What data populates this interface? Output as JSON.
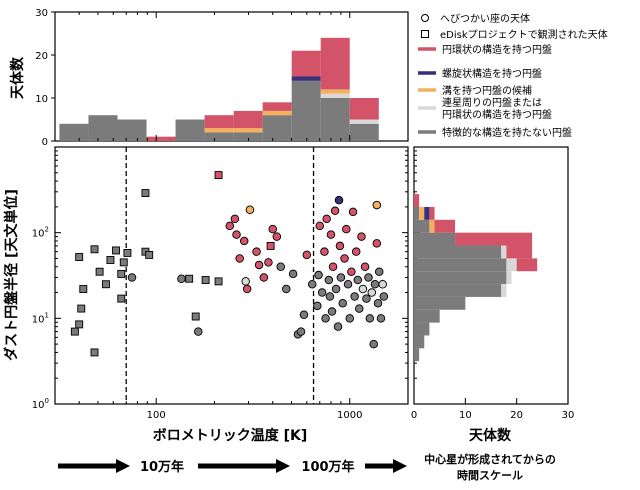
{
  "chart_data": {
    "type": "scatter",
    "title": "",
    "legend": {
      "markers": [
        {
          "marker": "circle",
          "label": "へびつかい座の天体"
        },
        {
          "marker": "square",
          "label": "eDiskプロジェクトで観測された天体"
        }
      ],
      "categories": [
        {
          "key": "ring",
          "label": "円環状の構造を持つ円盤",
          "color": "#d35368"
        },
        {
          "key": "spiral",
          "label": "螺旋状構造を持つ円盤",
          "color": "#35317d"
        },
        {
          "key": "gap",
          "label": "溝を持つ円盤の候補",
          "color": "#f4b05c"
        },
        {
          "key": "binary",
          "label": "連星周りの円盤または\n円環状の構造を持つ円盤",
          "color": "#d8d8d8"
        },
        {
          "key": "none",
          "label": "特徴的な構造を持たない円盤",
          "color": "#7b7b7b"
        }
      ]
    },
    "top_histogram": {
      "ylabel": "天体数",
      "ylim": [
        0,
        30
      ],
      "yticks": [
        "0",
        "10",
        "20",
        "30"
      ],
      "bins_log10_K": [
        1.5,
        1.65,
        1.8,
        1.95,
        2.1,
        2.25,
        2.4,
        2.55,
        2.7,
        2.85,
        3.0,
        3.15
      ],
      "counts": {
        "none": [
          4,
          6,
          5,
          0,
          5,
          2,
          2,
          6,
          14,
          10,
          4
        ],
        "binary": [
          0,
          0,
          0,
          0,
          0,
          0,
          0,
          0,
          0,
          1,
          1
        ],
        "gap": [
          0,
          0,
          0,
          0,
          0,
          1,
          1,
          1,
          0,
          1,
          0
        ],
        "spiral": [
          0,
          0,
          0,
          0,
          0,
          0,
          0,
          0,
          1,
          0,
          0
        ],
        "ring": [
          0,
          0,
          0,
          1,
          0,
          3,
          4,
          2,
          6,
          12,
          5
        ]
      }
    },
    "scatter": {
      "xlabel": "ボロメトリック温度 [K]",
      "ylabel": "ダスト円盤半径 [天文単位]",
      "xscale": "log",
      "yscale": "log",
      "xlim": [
        30,
        2000
      ],
      "ylim": [
        1,
        1000
      ],
      "xticks": [
        "100",
        "1000"
      ],
      "yticks": [
        "10^0",
        "10^1",
        "10^2"
      ],
      "vlines_K": [
        70,
        650
      ],
      "points": [
        {
          "x": 38,
          "y": 7,
          "m": "square",
          "c": "none"
        },
        {
          "x": 40,
          "y": 8.5,
          "m": "square",
          "c": "none"
        },
        {
          "x": 41,
          "y": 13,
          "m": "square",
          "c": "none"
        },
        {
          "x": 42,
          "y": 22,
          "m": "square",
          "c": "none"
        },
        {
          "x": 40,
          "y": 52,
          "m": "square",
          "c": "none"
        },
        {
          "x": 48,
          "y": 64,
          "m": "square",
          "c": "none"
        },
        {
          "x": 51,
          "y": 35,
          "m": "square",
          "c": "none"
        },
        {
          "x": 48,
          "y": 4,
          "m": "square",
          "c": "none"
        },
        {
          "x": 55,
          "y": 25,
          "m": "square",
          "c": "none"
        },
        {
          "x": 58,
          "y": 48,
          "m": "square",
          "c": "none"
        },
        {
          "x": 62,
          "y": 62,
          "m": "square",
          "c": "none"
        },
        {
          "x": 66,
          "y": 17,
          "m": "square",
          "c": "none"
        },
        {
          "x": 66,
          "y": 33,
          "m": "square",
          "c": "none"
        },
        {
          "x": 68,
          "y": 45,
          "m": "square",
          "c": "none"
        },
        {
          "x": 71,
          "y": 58,
          "m": "square",
          "c": "none"
        },
        {
          "x": 88,
          "y": 290,
          "m": "square",
          "c": "none"
        },
        {
          "x": 88,
          "y": 60,
          "m": "square",
          "c": "none"
        },
        {
          "x": 92,
          "y": 55,
          "m": "square",
          "c": "none"
        },
        {
          "x": 148,
          "y": 29,
          "m": "square",
          "c": "none"
        },
        {
          "x": 160,
          "y": 10.5,
          "m": "square",
          "c": "none"
        },
        {
          "x": 180,
          "y": 28,
          "m": "square",
          "c": "none"
        },
        {
          "x": 210,
          "y": 470,
          "m": "square",
          "c": "ring"
        },
        {
          "x": 210,
          "y": 27,
          "m": "square",
          "c": "none"
        },
        {
          "x": 390,
          "y": 70,
          "m": "square",
          "c": "ring"
        },
        {
          "x": 75,
          "y": 30,
          "m": "circle",
          "c": "none"
        },
        {
          "x": 135,
          "y": 29,
          "m": "circle",
          "c": "none"
        },
        {
          "x": 165,
          "y": 7,
          "m": "circle",
          "c": "none"
        },
        {
          "x": 240,
          "y": 120,
          "m": "circle",
          "c": "ring"
        },
        {
          "x": 255,
          "y": 145,
          "m": "circle",
          "c": "ring"
        },
        {
          "x": 260,
          "y": 95,
          "m": "circle",
          "c": "ring"
        },
        {
          "x": 270,
          "y": 50,
          "m": "circle",
          "c": "ring"
        },
        {
          "x": 285,
          "y": 80,
          "m": "circle",
          "c": "ring"
        },
        {
          "x": 290,
          "y": 27,
          "m": "circle",
          "c": "binary"
        },
        {
          "x": 295,
          "y": 22,
          "m": "circle",
          "c": "ring"
        },
        {
          "x": 305,
          "y": 185,
          "m": "circle",
          "c": "gap"
        },
        {
          "x": 330,
          "y": 60,
          "m": "circle",
          "c": "ring"
        },
        {
          "x": 340,
          "y": 42,
          "m": "circle",
          "c": "ring"
        },
        {
          "x": 360,
          "y": 30,
          "m": "circle",
          "c": "ring"
        },
        {
          "x": 380,
          "y": 45,
          "m": "circle",
          "c": "ring"
        },
        {
          "x": 400,
          "y": 110,
          "m": "circle",
          "c": "ring"
        },
        {
          "x": 420,
          "y": 90,
          "m": "circle",
          "c": "ring"
        },
        {
          "x": 440,
          "y": 40,
          "m": "circle",
          "c": "none"
        },
        {
          "x": 470,
          "y": 22,
          "m": "circle",
          "c": "none"
        },
        {
          "x": 510,
          "y": 33,
          "m": "circle",
          "c": "none"
        },
        {
          "x": 540,
          "y": 6.5,
          "m": "circle",
          "c": "none"
        },
        {
          "x": 560,
          "y": 7,
          "m": "circle",
          "c": "none"
        },
        {
          "x": 580,
          "y": 11,
          "m": "circle",
          "c": "none"
        },
        {
          "x": 600,
          "y": 55,
          "m": "circle",
          "c": "ring"
        },
        {
          "x": 640,
          "y": 25,
          "m": "circle",
          "c": "none"
        },
        {
          "x": 680,
          "y": 14,
          "m": "circle",
          "c": "none"
        },
        {
          "x": 690,
          "y": 32,
          "m": "circle",
          "c": "none"
        },
        {
          "x": 700,
          "y": 120,
          "m": "circle",
          "c": "ring"
        },
        {
          "x": 720,
          "y": 20,
          "m": "circle",
          "c": "none"
        },
        {
          "x": 740,
          "y": 60,
          "m": "circle",
          "c": "ring"
        },
        {
          "x": 750,
          "y": 10,
          "m": "circle",
          "c": "none"
        },
        {
          "x": 760,
          "y": 145,
          "m": "circle",
          "c": "ring"
        },
        {
          "x": 780,
          "y": 28,
          "m": "circle",
          "c": "none"
        },
        {
          "x": 790,
          "y": 18,
          "m": "circle",
          "c": "none"
        },
        {
          "x": 800,
          "y": 95,
          "m": "circle",
          "c": "ring"
        },
        {
          "x": 810,
          "y": 12,
          "m": "circle",
          "c": "none"
        },
        {
          "x": 820,
          "y": 40,
          "m": "circle",
          "c": "ring"
        },
        {
          "x": 840,
          "y": 180,
          "m": "circle",
          "c": "ring"
        },
        {
          "x": 850,
          "y": 22,
          "m": "circle",
          "c": "none"
        },
        {
          "x": 870,
          "y": 8,
          "m": "circle",
          "c": "none"
        },
        {
          "x": 880,
          "y": 240,
          "m": "circle",
          "c": "spiral"
        },
        {
          "x": 890,
          "y": 70,
          "m": "circle",
          "c": "ring"
        },
        {
          "x": 900,
          "y": 30,
          "m": "circle",
          "c": "none"
        },
        {
          "x": 920,
          "y": 15,
          "m": "circle",
          "c": "none"
        },
        {
          "x": 940,
          "y": 50,
          "m": "circle",
          "c": "ring"
        },
        {
          "x": 960,
          "y": 110,
          "m": "circle",
          "c": "ring"
        },
        {
          "x": 980,
          "y": 25,
          "m": "circle",
          "c": "none"
        },
        {
          "x": 1000,
          "y": 10,
          "m": "circle",
          "c": "none"
        },
        {
          "x": 1020,
          "y": 35,
          "m": "circle",
          "c": "ring"
        },
        {
          "x": 1040,
          "y": 175,
          "m": "circle",
          "c": "ring"
        },
        {
          "x": 1060,
          "y": 18,
          "m": "circle",
          "c": "none"
        },
        {
          "x": 1080,
          "y": 60,
          "m": "circle",
          "c": "ring"
        },
        {
          "x": 1100,
          "y": 28,
          "m": "circle",
          "c": "none"
        },
        {
          "x": 1120,
          "y": 13,
          "m": "circle",
          "c": "none"
        },
        {
          "x": 1150,
          "y": 90,
          "m": "circle",
          "c": "ring"
        },
        {
          "x": 1170,
          "y": 22,
          "m": "circle",
          "c": "binary"
        },
        {
          "x": 1200,
          "y": 40,
          "m": "circle",
          "c": "ring"
        },
        {
          "x": 1220,
          "y": 17,
          "m": "circle",
          "c": "none"
        },
        {
          "x": 1250,
          "y": 30,
          "m": "circle",
          "c": "none"
        },
        {
          "x": 1270,
          "y": 10,
          "m": "circle",
          "c": "none"
        },
        {
          "x": 1300,
          "y": 20,
          "m": "circle",
          "c": "binary"
        },
        {
          "x": 1330,
          "y": 5,
          "m": "circle",
          "c": "none"
        },
        {
          "x": 1350,
          "y": 25,
          "m": "circle",
          "c": "none"
        },
        {
          "x": 1380,
          "y": 210,
          "m": "circle",
          "c": "gap"
        },
        {
          "x": 1400,
          "y": 15,
          "m": "circle",
          "c": "none"
        },
        {
          "x": 1420,
          "y": 35,
          "m": "circle",
          "c": "none"
        },
        {
          "x": 1450,
          "y": 10,
          "m": "circle",
          "c": "none"
        },
        {
          "x": 1480,
          "y": 25,
          "m": "circle",
          "c": "binary"
        },
        {
          "x": 1500,
          "y": 18,
          "m": "circle",
          "c": "none"
        },
        {
          "x": 1380,
          "y": 75,
          "m": "circle",
          "c": "ring"
        }
      ]
    },
    "right_histogram": {
      "xlabel": "天体数",
      "xlim": [
        0,
        30
      ],
      "xticks": [
        "0",
        "10",
        "20",
        "30"
      ],
      "bins_log10_au": [
        0.5,
        0.65,
        0.8,
        0.95,
        1.1,
        1.25,
        1.4,
        1.55,
        1.7,
        1.85,
        2.0,
        2.15,
        2.3,
        2.45
      ],
      "counts": {
        "none": [
          1,
          2,
          3,
          5,
          10,
          17,
          18,
          18,
          17,
          8,
          3,
          1,
          0
        ],
        "binary": [
          0,
          0,
          0,
          0,
          0,
          1,
          1,
          2,
          1,
          0,
          0,
          0,
          0
        ],
        "gap": [
          0,
          0,
          0,
          0,
          0,
          0,
          0,
          0,
          0,
          0,
          1,
          1,
          0
        ],
        "spiral": [
          0,
          0,
          0,
          0,
          0,
          0,
          0,
          0,
          0,
          0,
          0,
          1,
          0
        ],
        "ring": [
          0,
          0,
          0,
          0,
          0,
          0,
          0,
          4,
          5,
          15,
          4,
          1,
          1
        ]
      }
    },
    "timeline": {
      "labels": [
        "10万年",
        "100万年"
      ],
      "caption_line1": "中心星が形成されてからの",
      "caption_line2": "時間スケール"
    }
  }
}
